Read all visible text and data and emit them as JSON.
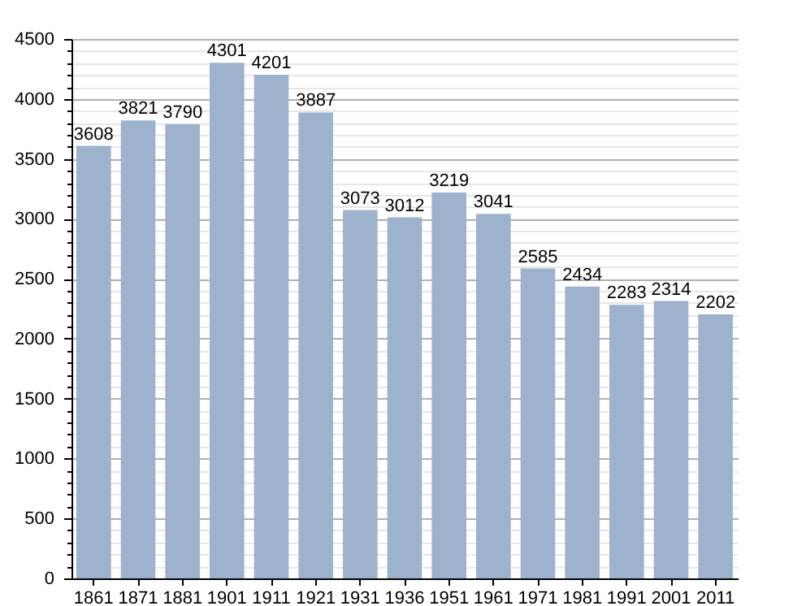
{
  "chart_data": {
    "type": "bar",
    "categories": [
      "1861",
      "1871",
      "1881",
      "1901",
      "1911",
      "1921",
      "1931",
      "1936",
      "1951",
      "1961",
      "1971",
      "1981",
      "1991",
      "2001",
      "2011"
    ],
    "values": [
      3608,
      3821,
      3790,
      4301,
      4201,
      3887,
      3073,
      3012,
      3219,
      3041,
      2585,
      2434,
      2283,
      2314,
      2202
    ],
    "color": "#9db3cd",
    "ylim": [
      0,
      4500
    ],
    "yticks": [
      0,
      {
        "value": 100,
        "label": null
      },
      {
        "value": 200,
        "label": null
      },
      {
        "value": 300,
        "label": null
      },
      {
        "value": 400,
        "label": null
      },
      500,
      {
        "value": 600,
        "label": null
      },
      {
        "value": 700,
        "label": null
      },
      {
        "value": 800,
        "label": null
      },
      {
        "value": 900,
        "label": null
      },
      1000,
      {
        "value": 1100,
        "label": null
      },
      {
        "value": 1200,
        "label": null
      },
      {
        "value": 1300,
        "label": null
      },
      {
        "value": 1400,
        "label": null
      },
      1500,
      {
        "value": 1600,
        "label": null
      },
      {
        "value": 1700,
        "label": null
      },
      {
        "value": 1800,
        "label": null
      },
      {
        "value": 1900,
        "label": null
      },
      2000,
      {
        "value": 2100,
        "label": null
      },
      {
        "value": 2200,
        "label": null
      },
      {
        "value": 2300,
        "label": null
      },
      {
        "value": 2400,
        "label": null
      },
      2500,
      {
        "value": 2600,
        "label": null
      },
      {
        "value": 2700,
        "label": null
      },
      {
        "value": 2800,
        "label": null
      },
      {
        "value": 2900,
        "label": null
      },
      3000,
      {
        "value": 3100,
        "label": null
      },
      {
        "value": 3200,
        "label": null
      },
      {
        "value": 3300,
        "label": null
      },
      {
        "value": 3400,
        "label": null
      },
      3500,
      {
        "value": 3600,
        "label": null
      },
      {
        "value": 3700,
        "label": null
      },
      {
        "value": 3800,
        "label": null
      },
      {
        "value": 3900,
        "label": null
      },
      4000,
      {
        "value": 4100,
        "label": null
      },
      {
        "value": 4200,
        "label": null
      },
      {
        "value": 4300,
        "label": null
      },
      {
        "value": 4400,
        "label": null
      },
      4500
    ],
    "grid": "y",
    "data_labels": true
  }
}
